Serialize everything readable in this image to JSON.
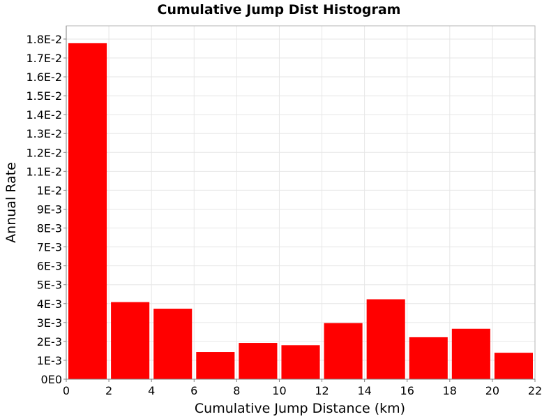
{
  "chart_data": {
    "type": "bar",
    "title": "Cumulative Jump Dist Histogram",
    "xlabel": "Cumulative Jump Distance (km)",
    "ylabel": "Annual Rate",
    "xlim": [
      0,
      22
    ],
    "ylim": [
      0,
      0.0187
    ],
    "x_ticks": [
      "0",
      "2",
      "4",
      "6",
      "8",
      "10",
      "12",
      "14",
      "16",
      "18",
      "20",
      "22"
    ],
    "y_ticks": [
      "0E0",
      "1E-3",
      "2E-3",
      "3E-3",
      "4E-3",
      "5E-3",
      "6E-3",
      "7E-3",
      "8E-3",
      "9E-3",
      "1E-2",
      "1.1E-2",
      "1.2E-2",
      "1.3E-2",
      "1.4E-2",
      "1.5E-2",
      "1.6E-2",
      "1.7E-2",
      "1.8E-2"
    ],
    "bin_width": 2,
    "bins": [
      {
        "x_start": 0,
        "x_end": 2,
        "value": 0.01778
      },
      {
        "x_start": 2,
        "x_end": 4,
        "value": 0.00408
      },
      {
        "x_start": 4,
        "x_end": 6,
        "value": 0.00373
      },
      {
        "x_start": 6,
        "x_end": 8,
        "value": 0.00144
      },
      {
        "x_start": 8,
        "x_end": 10,
        "value": 0.00192
      },
      {
        "x_start": 10,
        "x_end": 12,
        "value": 0.0018
      },
      {
        "x_start": 12,
        "x_end": 14,
        "value": 0.00297
      },
      {
        "x_start": 14,
        "x_end": 16,
        "value": 0.00423
      },
      {
        "x_start": 16,
        "x_end": 18,
        "value": 0.00222
      },
      {
        "x_start": 18,
        "x_end": 20,
        "value": 0.00267
      },
      {
        "x_start": 20,
        "x_end": 22,
        "value": 0.0014
      }
    ],
    "grid": true,
    "colors": {
      "bar": "#ff0000",
      "grid": "#e6e6e6",
      "frame": "#b4b4b4",
      "axis": "#808080"
    }
  }
}
